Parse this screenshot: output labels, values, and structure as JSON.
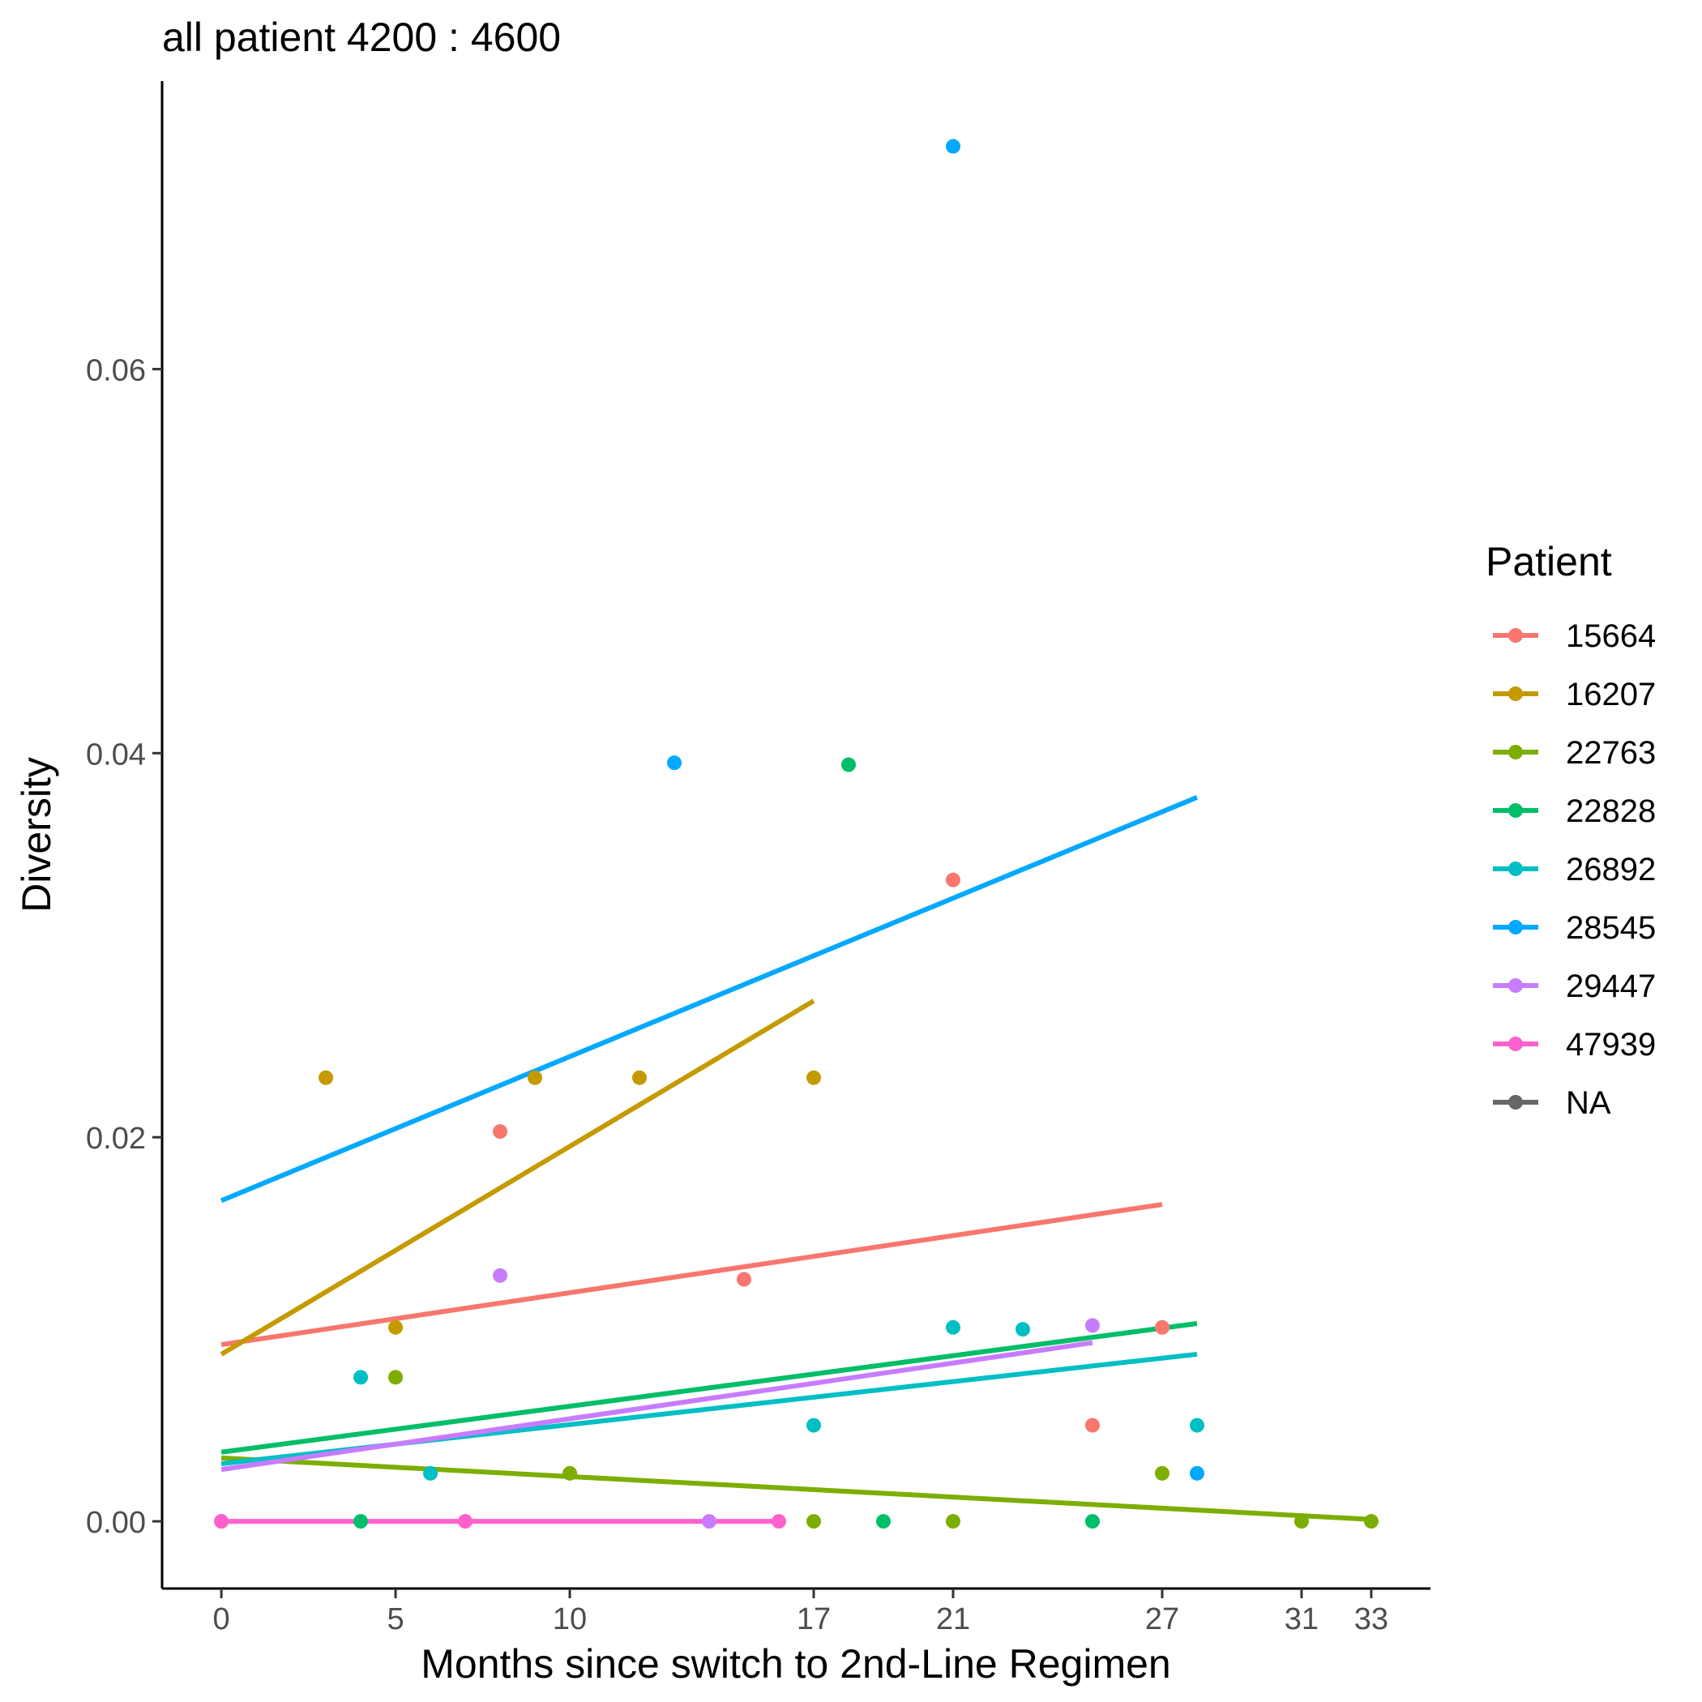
{
  "chart_data": {
    "type": "scatter",
    "title": "all patient 4200 : 4600",
    "xlabel": "Months since switch to 2nd-Line Regimen",
    "ylabel": "Diversity",
    "xlim": [
      -1.7,
      34.7
    ],
    "ylim": [
      -0.0035,
      0.075
    ],
    "x_ticks": [
      0,
      5,
      10,
      17,
      21,
      27,
      31,
      33
    ],
    "y_ticks": [
      0.0,
      0.02,
      0.04,
      0.06
    ],
    "y_tick_labels": [
      "0.00",
      "0.02",
      "0.04",
      "0.06"
    ],
    "grid": false,
    "legend": {
      "title": "Patient",
      "position": "right",
      "entries": [
        "15664",
        "16207",
        "22763",
        "22828",
        "26892",
        "28545",
        "29447",
        "47939",
        "NA"
      ]
    },
    "series": [
      {
        "name": "15664",
        "color": "#F8766D",
        "points": [
          [
            8,
            0.0203
          ],
          [
            15,
            0.0126
          ],
          [
            21,
            0.0334
          ],
          [
            25,
            0.005
          ],
          [
            27,
            0.0101
          ]
        ],
        "fit": [
          [
            0,
            0.0092
          ],
          [
            27,
            0.0165
          ]
        ]
      },
      {
        "name": "16207",
        "color": "#C49A00",
        "points": [
          [
            3,
            0.0231
          ],
          [
            5,
            0.0101
          ],
          [
            9,
            0.0231
          ],
          [
            12,
            0.0231
          ],
          [
            17,
            0.0231
          ]
        ],
        "fit": [
          [
            0,
            0.0087
          ],
          [
            17,
            0.0271
          ]
        ]
      },
      {
        "name": "22763",
        "color": "#7CAE00",
        "points": [
          [
            5,
            0.0075
          ],
          [
            10,
            0.0025
          ],
          [
            17,
            0.0
          ],
          [
            21,
            0.0
          ],
          [
            27,
            0.0025
          ],
          [
            31,
            0.0
          ],
          [
            33,
            0.0
          ]
        ],
        "fit": [
          [
            0,
            0.0033
          ],
          [
            33,
            0.0001
          ]
        ]
      },
      {
        "name": "22828",
        "color": "#00BE67",
        "points": [
          [
            4,
            0.0
          ],
          [
            18,
            0.0394
          ],
          [
            19,
            0.0
          ],
          [
            25,
            0.0
          ]
        ],
        "fit": [
          [
            0,
            0.0036
          ],
          [
            28,
            0.0103
          ]
        ]
      },
      {
        "name": "26892",
        "color": "#00BFC4",
        "points": [
          [
            4,
            0.0075
          ],
          [
            6,
            0.0025
          ],
          [
            17,
            0.005
          ],
          [
            21,
            0.0101
          ],
          [
            23,
            0.01
          ],
          [
            28,
            0.005
          ]
        ],
        "fit": [
          [
            0,
            0.003
          ],
          [
            28,
            0.0087
          ]
        ]
      },
      {
        "name": "28545",
        "color": "#00A9FF",
        "points": [
          [
            13,
            0.0395
          ],
          [
            21,
            0.0716
          ],
          [
            28,
            0.0025
          ]
        ],
        "fit": [
          [
            0,
            0.0167
          ],
          [
            28,
            0.0377
          ]
        ]
      },
      {
        "name": "29447",
        "color": "#C77CFF",
        "points": [
          [
            0,
            0.0
          ],
          [
            8,
            0.0128
          ],
          [
            14,
            0.0
          ],
          [
            25,
            0.0102
          ]
        ],
        "fit": [
          [
            0,
            0.0027
          ],
          [
            25,
            0.0093
          ]
        ]
      },
      {
        "name": "47939",
        "color": "#FF61CC",
        "points": [
          [
            0,
            0.0
          ],
          [
            7,
            0.0
          ],
          [
            16,
            0.0
          ]
        ],
        "fit": [
          [
            0,
            0.0
          ],
          [
            16,
            0.0
          ]
        ]
      },
      {
        "name": "NA",
        "color": "#666666",
        "points": [],
        "fit": []
      }
    ]
  }
}
